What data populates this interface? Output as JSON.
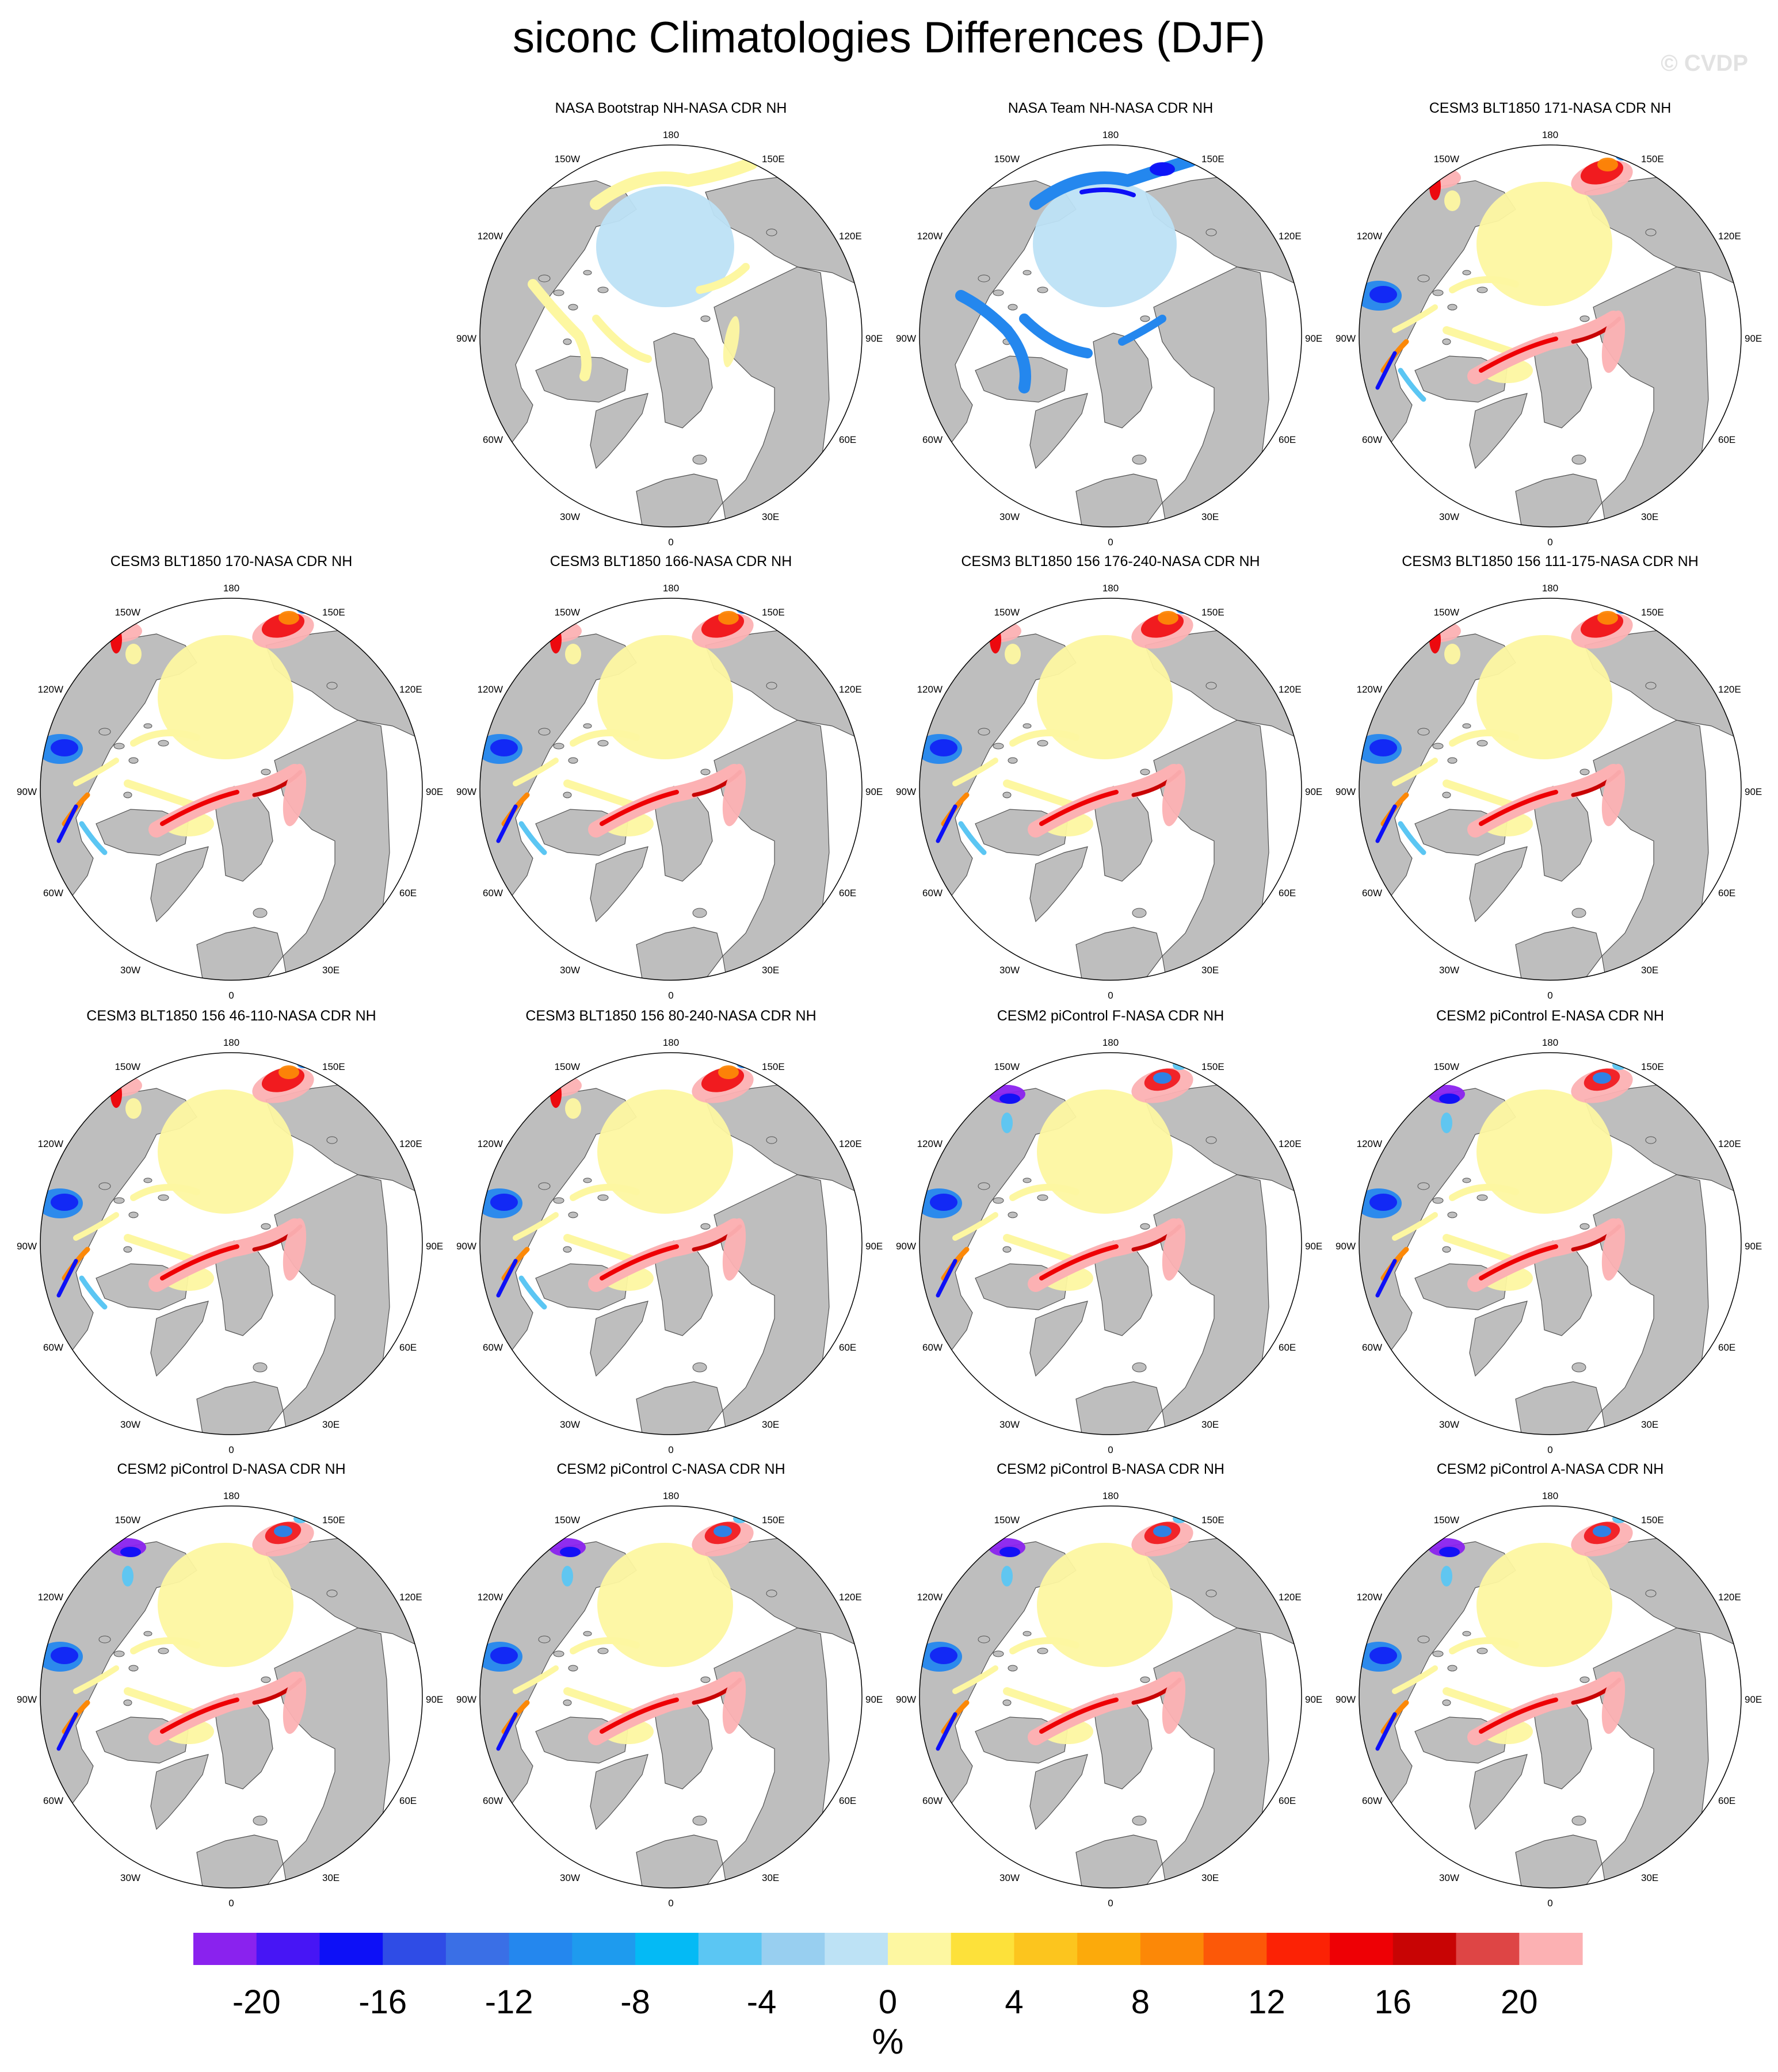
{
  "title": "siconc Climatologies Differences (DJF)",
  "watermark": "© CVDP",
  "panels": [
    {
      "id": "p1",
      "title": "NASA Bootstrap NH-NASA CDR NH",
      "mode": "bootstrap"
    },
    {
      "id": "p2",
      "title": "NASA Team NH-NASA CDR NH",
      "mode": "team"
    },
    {
      "id": "p3",
      "title": "CESM3 BLT1850 171-NASA CDR NH",
      "mode": "cesm3"
    },
    {
      "id": "p4",
      "title": "CESM3 BLT1850 170-NASA CDR NH",
      "mode": "cesm3"
    },
    {
      "id": "p5",
      "title": "CESM3 BLT1850 166-NASA CDR NH",
      "mode": "cesm3"
    },
    {
      "id": "p6",
      "title": "CESM3 BLT1850 156 176-240-NASA CDR NH",
      "mode": "cesm3"
    },
    {
      "id": "p7",
      "title": "CESM3 BLT1850 156 111-175-NASA CDR NH",
      "mode": "cesm3"
    },
    {
      "id": "p8",
      "title": "CESM3 BLT1850 156 46-110-NASA CDR NH",
      "mode": "cesm3"
    },
    {
      "id": "p9",
      "title": "CESM3 BLT1850 156 80-240-NASA CDR NH",
      "mode": "cesm3"
    },
    {
      "id": "p10",
      "title": "CESM2 piControl F-NASA CDR NH",
      "mode": "cesm2"
    },
    {
      "id": "p11",
      "title": "CESM2 piControl E-NASA CDR NH",
      "mode": "cesm2"
    },
    {
      "id": "p12",
      "title": "CESM2 piControl D-NASA CDR NH",
      "mode": "cesm2"
    },
    {
      "id": "p13",
      "title": "CESM2 piControl C-NASA CDR NH",
      "mode": "cesm2"
    },
    {
      "id": "p14",
      "title": "CESM2 piControl B-NASA CDR NH",
      "mode": "cesm2"
    },
    {
      "id": "p15",
      "title": "CESM2 piControl A-NASA CDR NH",
      "mode": "cesm2"
    }
  ],
  "map_labels": {
    "top": "180",
    "bottom": "0",
    "left_side": [
      "150W",
      "120W",
      "90W",
      "60W",
      "30W"
    ],
    "right_side": [
      "150E",
      "120E",
      "90E",
      "60E",
      "30E"
    ]
  },
  "colorbar": {
    "unit": "%",
    "tick_labels": [
      "-20",
      "-16",
      "-12",
      "-8",
      "-4",
      "0",
      "4",
      "8",
      "12",
      "16",
      "20"
    ],
    "colors": [
      "#8a22ee",
      "#4715f5",
      "#0d10f7",
      "#2f4ce6",
      "#3a6fe6",
      "#2487ee",
      "#1e9bee",
      "#04baf5",
      "#5bc6f3",
      "#98cff0",
      "#bde2f5",
      "#fdf7a1",
      "#fde13a",
      "#fcc51e",
      "#fcaa0b",
      "#fc8807",
      "#fc5808",
      "#fc2205",
      "#ee0005",
      "#c80404",
      "#de4545",
      "#fcb1b3"
    ]
  }
}
